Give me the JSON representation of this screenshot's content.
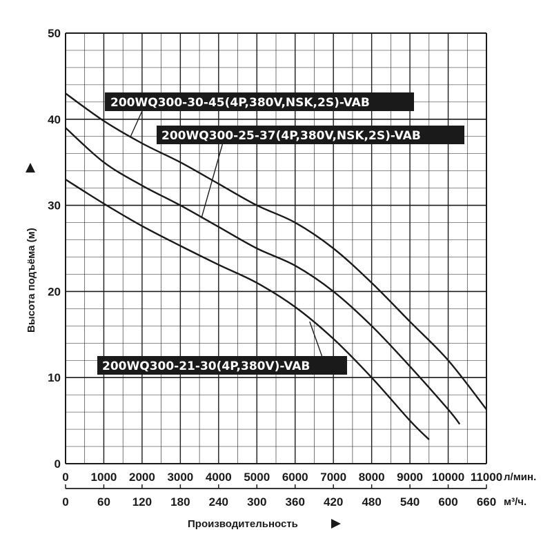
{
  "chart_data": {
    "type": "line",
    "xlabel": "Производительность",
    "ylabel": "Высота подъёма (м)",
    "x_unit": "л/мин.",
    "x2_unit": "м³/ч.",
    "xlim": [
      0,
      11000
    ],
    "ylim": [
      0,
      50
    ],
    "x_ticks": [
      "0",
      "1000",
      "2000",
      "3000",
      "4000",
      "5000",
      "6000",
      "7000",
      "8000",
      "9000",
      "10000",
      "11000"
    ],
    "x2_ticks": [
      "0",
      "60",
      "120",
      "180",
      "240",
      "300",
      "360",
      "420",
      "480",
      "540",
      "600",
      "660"
    ],
    "y_ticks": [
      "0",
      "10",
      "20",
      "30",
      "40",
      "50"
    ],
    "grid": true,
    "series": [
      {
        "name": "200WQ300-30-45(4P,380V,NSK,2S)-VAB",
        "x": [
          0,
          1000,
          2000,
          3000,
          4000,
          5000,
          6000,
          7000,
          8000,
          9000,
          10000,
          11000
        ],
        "y": [
          43,
          39.8,
          37.2,
          35,
          32.5,
          30,
          28,
          25,
          21,
          16.5,
          12,
          6.3
        ]
      },
      {
        "name": "200WQ300-25-37(4P,380V,NSK,2S)-VAB",
        "x": [
          0,
          1000,
          2000,
          3000,
          4000,
          5000,
          6000,
          7000,
          8000,
          9000,
          10000,
          10300
        ],
        "y": [
          39,
          35,
          32.3,
          30,
          27.5,
          25,
          23,
          20,
          16,
          11.3,
          6.3,
          4.6
        ]
      },
      {
        "name": "200WQ300-21-30(4P,380V)-VAB",
        "x": [
          0,
          1000,
          2000,
          3000,
          4000,
          5000,
          6000,
          7000,
          8000,
          9000,
          9500
        ],
        "y": [
          33,
          30.2,
          27.6,
          25.3,
          23.1,
          21,
          18.2,
          14.5,
          10,
          5,
          2.8
        ]
      }
    ]
  }
}
